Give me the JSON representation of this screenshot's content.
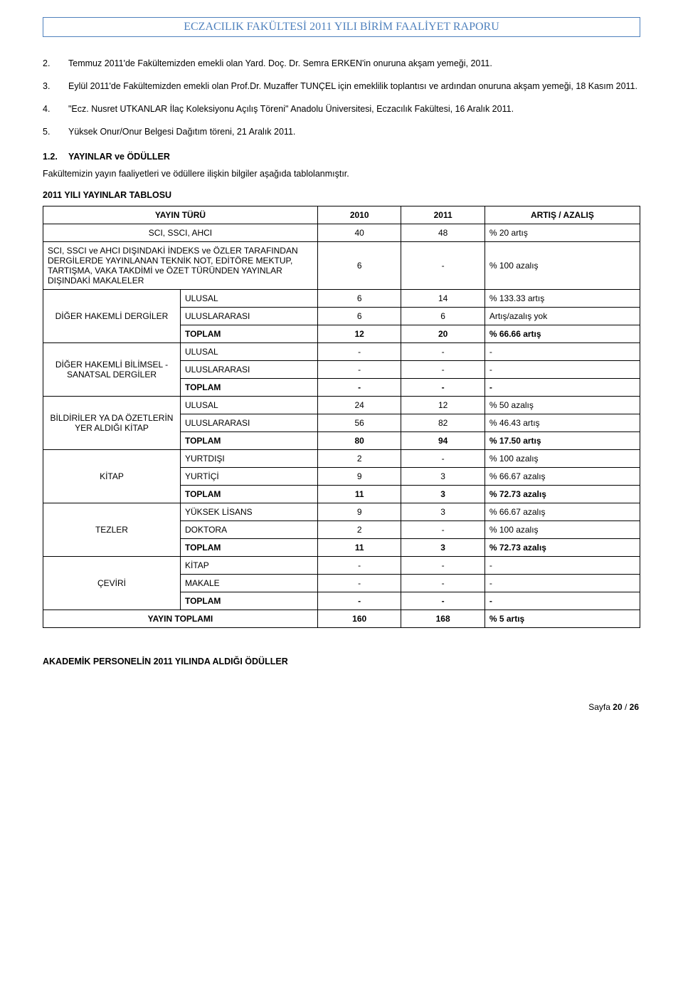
{
  "header": "ECZACILIK FAKÜLTESİ 2011 YILI BİRİM FAALİYET RAPORU",
  "listItems": [
    {
      "n": "2.",
      "t": "Temmuz 2011'de Fakültemizden emekli olan Yard. Doç. Dr. Semra ERKEN'in onuruna akşam yemeği, 2011."
    },
    {
      "n": "3.",
      "t": "Eylül 2011'de Fakültemizden emekli olan Prof.Dr. Muzaffer TUNÇEL için emeklilik toplantısı ve ardından onuruna akşam yemeği, 18 Kasım 2011."
    },
    {
      "n": "4.",
      "t": "\"Ecz. Nusret UTKANLAR İlaç Koleksiyonu Açılış Töreni\" Anadolu Üniversitesi, Eczacılık Fakültesi, 16 Aralık 2011."
    },
    {
      "n": "5.",
      "t": "Yüksek Onur/Onur Belgesi Dağıtım töreni, 21 Aralık 2011."
    }
  ],
  "section": {
    "num": "1.2.",
    "title": "YAYINLAR ve ÖDÜLLER"
  },
  "sectionPara": "Fakültemizin yayın faaliyetleri ve ödüllere ilişkin bilgiler aşağıda tablolanmıştır.",
  "tableTitle": "2011 YILI YAYINLAR TABLOSU",
  "thead": {
    "c1": "YAYIN TÜRÜ",
    "c2": "2010",
    "c3": "2011",
    "c4": "ARTIŞ / AZALIŞ"
  },
  "rows": [
    {
      "full": "SCI, SSCI, AHCI",
      "v1": "40",
      "v2": "48",
      "ch": "% 20 artış",
      "fullCenter": true
    },
    {
      "full": "SCI, SSCI ve AHCI DIŞINDAKİ İNDEKS ve ÖZLER TARAFINDAN DERGİLERDE YAYINLANAN TEKNİK NOT, EDİTÖRE MEKTUP, TARTIŞMA, VAKA TAKDİMİ ve ÖZET TÜRÜNDEN YAYINLAR DIŞINDAKİ MAKALELER",
      "v1": "6",
      "v2": "-",
      "ch": "% 100 azalış"
    },
    {
      "cat": "DİĞER HAKEMLİ DERGİLER",
      "catSpan": 3,
      "sub": "ULUSAL",
      "v1": "6",
      "v2": "14",
      "ch": "% 133.33 artış"
    },
    {
      "sub": "ULUSLARARASI",
      "v1": "6",
      "v2": "6",
      "ch": "Artış/azalış yok"
    },
    {
      "sub": "TOPLAM",
      "bold": true,
      "v1": "12",
      "v2": "20",
      "ch": "% 66.66 artış"
    },
    {
      "cat": "DİĞER HAKEMLİ BİLİMSEL - SANATSAL DERGİLER",
      "catSpan": 3,
      "sub": "ULUSAL",
      "v1": "-",
      "v2": "-",
      "ch": "-"
    },
    {
      "sub": "ULUSLARARASI",
      "v1": "-",
      "v2": "-",
      "ch": "-"
    },
    {
      "sub": "TOPLAM",
      "bold": true,
      "v1": "-",
      "v2": "-",
      "ch": "-"
    },
    {
      "cat": "BİLDİRİLER YA DA ÖZETLERİN YER ALDIĞI KİTAP",
      "catSpan": 3,
      "sub": "ULUSAL",
      "v1": "24",
      "v2": "12",
      "ch": "% 50 azalış"
    },
    {
      "sub": "ULUSLARARASI",
      "v1": "56",
      "v2": "82",
      "ch": "% 46.43 artış"
    },
    {
      "sub": "TOPLAM",
      "bold": true,
      "v1": "80",
      "v2": "94",
      "ch": "%  17.50 artış"
    },
    {
      "cat": "KİTAP",
      "catSpan": 3,
      "sub": "YURTDIŞI",
      "v1": "2",
      "v2": "-",
      "ch": "%  100 azalış"
    },
    {
      "sub": "YURTİÇİ",
      "v1": "9",
      "v2": "3",
      "ch": "% 66.67 azalış"
    },
    {
      "sub": "TOPLAM",
      "bold": true,
      "v1": "11",
      "v2": "3",
      "ch": "% 72.73 azalış"
    },
    {
      "cat": "TEZLER",
      "catSpan": 3,
      "sub": "YÜKSEK LİSANS",
      "v1": "9",
      "v2": "3",
      "ch": "% 66.67 azalış"
    },
    {
      "sub": "DOKTORA",
      "v1": "2",
      "v2": "-",
      "ch": "% 100 azalış"
    },
    {
      "sub": "TOPLAM",
      "bold": true,
      "v1": "11",
      "v2": "3",
      "ch": "% 72.73 azalış"
    },
    {
      "cat": "ÇEVİRİ",
      "catSpan": 3,
      "sub": "KİTAP",
      "v1": "-",
      "v2": "-",
      "ch": "-"
    },
    {
      "sub": "MAKALE",
      "v1": "-",
      "v2": "-",
      "ch": "-"
    },
    {
      "sub": "TOPLAM",
      "bold": true,
      "v1": "-",
      "v2": "-",
      "ch": "-"
    },
    {
      "full": "YAYIN TOPLAMI",
      "v1": "160",
      "v2": "168",
      "ch": "% 5 artış",
      "bold": true,
      "fullCenter": true
    }
  ],
  "awards": "AKADEMİK PERSONELİN 2011 YILINDA ALDIĞI ÖDÜLLER",
  "footer": {
    "label": "Sayfa ",
    "cur": "20",
    "sep": " / ",
    "tot": "26"
  }
}
